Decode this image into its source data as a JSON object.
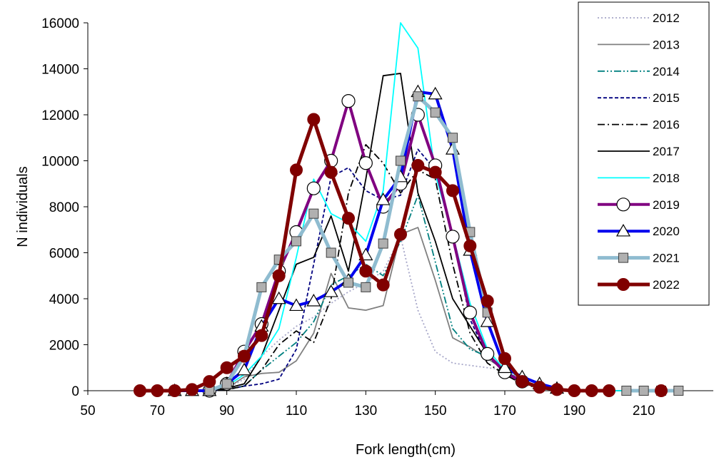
{
  "chart_data": {
    "type": "line",
    "title": "",
    "xlabel": "Fork length(cm)",
    "ylabel": "N individuals",
    "xlim": [
      50,
      230
    ],
    "ylim": [
      0,
      16000
    ],
    "x_ticks": [
      50,
      70,
      90,
      110,
      130,
      150,
      170,
      190,
      210
    ],
    "y_ticks": [
      0,
      2000,
      4000,
      6000,
      8000,
      10000,
      12000,
      14000,
      16000
    ],
    "grid": false,
    "legend_position": "top-right",
    "series": [
      {
        "name": "2012",
        "color": "#a6a6c8",
        "dash": "dotted",
        "marker": "none",
        "x": [
          75,
          80,
          85,
          90,
          95,
          100,
          105,
          110,
          115,
          120,
          125,
          130,
          135,
          140,
          145,
          150,
          155,
          160,
          165,
          170,
          175,
          180,
          185,
          190,
          195,
          200,
          205,
          210,
          215,
          220
        ],
        "y": [
          0,
          0,
          0,
          100,
          500,
          1500,
          2200,
          2800,
          3200,
          3800,
          4300,
          4700,
          5200,
          6700,
          3500,
          1700,
          1200,
          1100,
          1000,
          900,
          500,
          150,
          50,
          0,
          0,
          0,
          0,
          0,
          0,
          0
        ]
      },
      {
        "name": "2013",
        "color": "#808080",
        "dash": "solid",
        "marker": "none",
        "x": [
          75,
          80,
          85,
          90,
          95,
          100,
          105,
          110,
          115,
          120,
          125,
          130,
          135,
          140,
          145,
          150,
          155,
          160,
          165,
          170,
          175,
          180,
          185,
          190,
          195,
          200,
          205,
          210,
          215,
          220
        ],
        "y": [
          0,
          0,
          0,
          100,
          600,
          750,
          800,
          1300,
          2500,
          5100,
          3600,
          3500,
          3700,
          6800,
          7100,
          4800,
          2300,
          1900,
          1400,
          900,
          400,
          150,
          50,
          0,
          0,
          0,
          0,
          0,
          0,
          0
        ]
      },
      {
        "name": "2014",
        "color": "#008080",
        "dash": "dashdotdot",
        "marker": "none",
        "x": [
          75,
          80,
          85,
          90,
          95,
          100,
          105,
          110,
          115,
          120,
          125,
          130,
          135,
          140,
          145,
          150,
          155,
          160,
          165,
          170,
          175,
          180,
          185,
          190,
          195,
          200,
          205,
          210,
          215,
          220
        ],
        "y": [
          0,
          0,
          0,
          50,
          200,
          900,
          1500,
          2100,
          3000,
          4600,
          5000,
          5500,
          5000,
          6500,
          8500,
          5600,
          2700,
          1800,
          1500,
          1000,
          500,
          150,
          50,
          0,
          0,
          0,
          0,
          0,
          0,
          0
        ]
      },
      {
        "name": "2015",
        "color": "#000080",
        "dash": "dashed",
        "marker": "none",
        "x": [
          75,
          80,
          85,
          90,
          95,
          100,
          105,
          110,
          115,
          120,
          125,
          130,
          135,
          140,
          145,
          150,
          155,
          160,
          165,
          170,
          175,
          180,
          185,
          190,
          195,
          200,
          205,
          210,
          215,
          220
        ],
        "y": [
          0,
          0,
          0,
          50,
          200,
          300,
          500,
          1800,
          5500,
          9300,
          9700,
          8700,
          8300,
          8500,
          10500,
          9600,
          6800,
          3100,
          1500,
          800,
          400,
          100,
          50,
          0,
          0,
          0,
          0,
          0,
          0,
          0
        ]
      },
      {
        "name": "2016",
        "color": "#000000",
        "dash": "dashdot",
        "marker": "none",
        "x": [
          75,
          80,
          85,
          90,
          95,
          100,
          105,
          110,
          115,
          120,
          125,
          130,
          135,
          140,
          145,
          150,
          155,
          160,
          165,
          170,
          175,
          180,
          185,
          190,
          195,
          200,
          205,
          210,
          215,
          220
        ],
        "y": [
          0,
          0,
          0,
          50,
          200,
          900,
          2000,
          2600,
          2100,
          4000,
          8600,
          10700,
          9900,
          8600,
          9600,
          9200,
          5500,
          2500,
          1200,
          700,
          300,
          100,
          50,
          0,
          0,
          0,
          0,
          0,
          0,
          0
        ]
      },
      {
        "name": "2017",
        "color": "#000000",
        "dash": "solid",
        "marker": "none",
        "x": [
          75,
          80,
          85,
          90,
          95,
          100,
          105,
          110,
          115,
          120,
          125,
          130,
          135,
          140,
          145,
          150,
          155,
          160,
          165,
          170,
          175,
          180,
          185,
          190,
          195,
          200,
          205,
          210,
          215,
          220
        ],
        "y": [
          0,
          0,
          0,
          100,
          300,
          1500,
          3500,
          5500,
          5800,
          7600,
          5200,
          9200,
          13700,
          13800,
          8600,
          6500,
          4000,
          2800,
          1600,
          900,
          400,
          150,
          50,
          0,
          0,
          0,
          0,
          0,
          0,
          0
        ]
      },
      {
        "name": "2018",
        "color": "#00ffff",
        "dash": "solid",
        "marker": "none",
        "x": [
          75,
          80,
          85,
          90,
          95,
          100,
          105,
          110,
          115,
          120,
          125,
          130,
          135,
          140,
          145,
          150,
          155,
          160,
          165,
          170,
          175,
          180,
          185,
          190,
          195,
          200,
          205,
          210,
          215,
          220
        ],
        "y": [
          0,
          0,
          0,
          200,
          700,
          1500,
          2700,
          5800,
          9200,
          7700,
          7300,
          6500,
          8700,
          16000,
          14900,
          9400,
          6800,
          3800,
          1800,
          900,
          400,
          100,
          50,
          0,
          0,
          0,
          0,
          0,
          0,
          0
        ]
      },
      {
        "name": "2019",
        "color": "#800080",
        "dash": "solid",
        "marker": "circle-open",
        "width": 4,
        "x": [
          85,
          90,
          95,
          100,
          105,
          110,
          115,
          120,
          125,
          130,
          135,
          140,
          145,
          150,
          155,
          160,
          165,
          170,
          175
        ],
        "y": [
          0,
          300,
          1700,
          2900,
          5200,
          6900,
          8800,
          10000,
          12600,
          9900,
          8000,
          9000,
          12000,
          9800,
          6700,
          3400,
          1600,
          800,
          400
        ]
      },
      {
        "name": "2020",
        "color": "#0000ee",
        "dash": "solid",
        "marker": "triangle-open",
        "width": 4,
        "x": [
          75,
          80,
          85,
          90,
          95,
          100,
          105,
          110,
          115,
          120,
          125,
          130,
          135,
          140,
          145,
          150,
          155,
          160,
          165,
          170,
          175,
          180,
          185
        ],
        "y": [
          0,
          0,
          0,
          300,
          900,
          2800,
          4000,
          3700,
          3900,
          4300,
          4800,
          5900,
          8300,
          9300,
          13000,
          12900,
          10500,
          6100,
          3000,
          1000,
          600,
          300,
          100
        ]
      },
      {
        "name": "2021",
        "color": "#8fbcd0",
        "dash": "solid",
        "marker": "square",
        "width": 5,
        "x": [
          85,
          90,
          95,
          100,
          105,
          110,
          115,
          120,
          125,
          130,
          135,
          140,
          145,
          150,
          155,
          160,
          165,
          205,
          210,
          215,
          220
        ],
        "y": [
          0,
          300,
          1500,
          4500,
          5700,
          6500,
          7700,
          6000,
          4700,
          4500,
          6400,
          10000,
          12800,
          12100,
          11000,
          6900,
          3400,
          0,
          0,
          0,
          0
        ]
      },
      {
        "name": "2022",
        "color": "#800000",
        "dash": "solid",
        "marker": "circle-filled",
        "width": 5,
        "x": [
          65,
          70,
          75,
          80,
          85,
          90,
          95,
          100,
          105,
          110,
          115,
          120,
          125,
          130,
          135,
          140,
          145,
          150,
          155,
          160,
          165,
          170,
          175,
          180,
          185,
          190,
          195,
          200,
          215
        ],
        "y": [
          0,
          0,
          0,
          50,
          400,
          1000,
          1500,
          2400,
          5000,
          9600,
          11800,
          9500,
          7500,
          5200,
          4600,
          6800,
          9800,
          9500,
          8700,
          6300,
          3900,
          1400,
          400,
          150,
          50,
          0,
          0,
          0,
          0
        ]
      }
    ]
  }
}
